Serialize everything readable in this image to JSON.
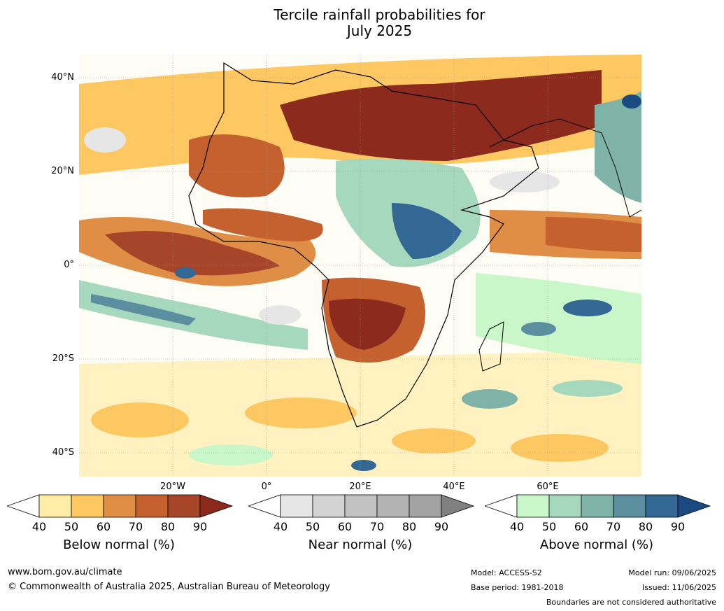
{
  "title": {
    "line1": "Tercile rainfall probabilities for",
    "line2": "July 2025"
  },
  "lat_labels": [
    "40°N",
    "20°N",
    "0°",
    "20°S",
    "40°S"
  ],
  "lon_labels": [
    "20°W",
    "0°",
    "20°E",
    "40°E",
    "60°E"
  ],
  "colorbars": [
    {
      "title": "Below normal (%)",
      "ticks": [
        "40",
        "50",
        "60",
        "70",
        "80",
        "90"
      ],
      "colors": [
        "#ffffff",
        "#ffeca6",
        "#fdc861",
        "#e08e45",
        "#c4612f",
        "#a6452a",
        "#8b2a1d"
      ]
    },
    {
      "title": "Near normal (%)",
      "ticks": [
        "40",
        "50",
        "60",
        "70",
        "80",
        "90"
      ],
      "colors": [
        "#ffffff",
        "#e6e6e6",
        "#d3d3d3",
        "#c2c2c2",
        "#b3b3b3",
        "#a3a3a3",
        "#808080"
      ]
    },
    {
      "title": "Above normal (%)",
      "ticks": [
        "40",
        "50",
        "60",
        "70",
        "80",
        "90"
      ],
      "colors": [
        "#ffffff",
        "#c9f7c9",
        "#a6d8bd",
        "#7fb3a8",
        "#5b8fa0",
        "#336794",
        "#1a4a80"
      ]
    }
  ],
  "footer": {
    "url": "www.bom.gov.au/climate",
    "copyright": "© Commonwealth of Australia 2025, Australian Bureau of Meteorology",
    "model": "Model: ACCESS-S2",
    "base_period": "Base period: 1981-2018",
    "model_run": "Model run: 09/06/2025",
    "issued": "Issued: 11/06/2025",
    "disclaimer": "Boundaries are not considered authoritative"
  }
}
